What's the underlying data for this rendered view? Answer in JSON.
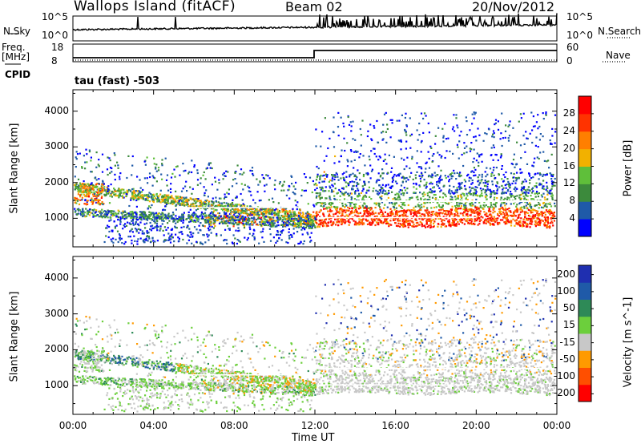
{
  "header": {
    "site": "Wallops Island (fitACF)",
    "beam": "Beam 02",
    "date": "20/Nov/2012"
  },
  "strip_noise": {
    "left_label": "N.Sky",
    "right_label": "N.Search",
    "left_ticks": [
      "10^5",
      "10^0"
    ],
    "right_ticks": [
      "10^5",
      "10^0"
    ]
  },
  "strip_freq": {
    "left_label_1": "Freq.",
    "left_label_2": "[MHz]",
    "right_label": "Nave",
    "left_ticks": [
      "18",
      "8"
    ],
    "right_ticks": [
      "60",
      "0"
    ]
  },
  "cpid": {
    "label": "CPID",
    "value": "tau (fast) -503"
  },
  "colors": {
    "power": [
      "#0000ff",
      "#1f5aa8",
      "#3c8a3c",
      "#5fbf3a",
      "#f2b100",
      "#ff7f00",
      "#ff3300",
      "#ff0000"
    ],
    "velocity": [
      "#ff0000",
      "#ff4f00",
      "#ff9a00",
      "#c8c8c8",
      "#6ccf3c",
      "#2e8a57",
      "#1f5aa8",
      "#1f2fb0"
    ]
  },
  "chart_data": [
    {
      "type": "heatmap",
      "title": "Power",
      "xlabel": "Time UT",
      "ylabel": "Slant Range [km]",
      "x_ticks": [
        "00:00",
        "04:00",
        "08:00",
        "12:00",
        "16:00",
        "20:00",
        "00:00"
      ],
      "y_ticks": [
        "1000",
        "2000",
        "3000",
        "4000"
      ],
      "ylim": [
        200,
        4600
      ],
      "colorbar_label": "Power [dB]",
      "colorbar_ticks": [
        "28",
        "24",
        "20",
        "16",
        "12",
        "8",
        "4"
      ],
      "colorbar_range": [
        0,
        32
      ]
    },
    {
      "type": "heatmap",
      "title": "Velocity",
      "xlabel": "Time UT",
      "ylabel": "Slant Range [km]",
      "x_ticks": [
        "00:00",
        "04:00",
        "08:00",
        "12:00",
        "16:00",
        "20:00",
        "00:00"
      ],
      "y_ticks": [
        "1000",
        "2000",
        "3000",
        "4000"
      ],
      "ylim": [
        200,
        4600
      ],
      "colorbar_label": "Velocity [m s^-1]",
      "colorbar_ticks": [
        "200",
        "100",
        "50",
        "15",
        "-15",
        "-50",
        "-100",
        "-200"
      ]
    }
  ]
}
